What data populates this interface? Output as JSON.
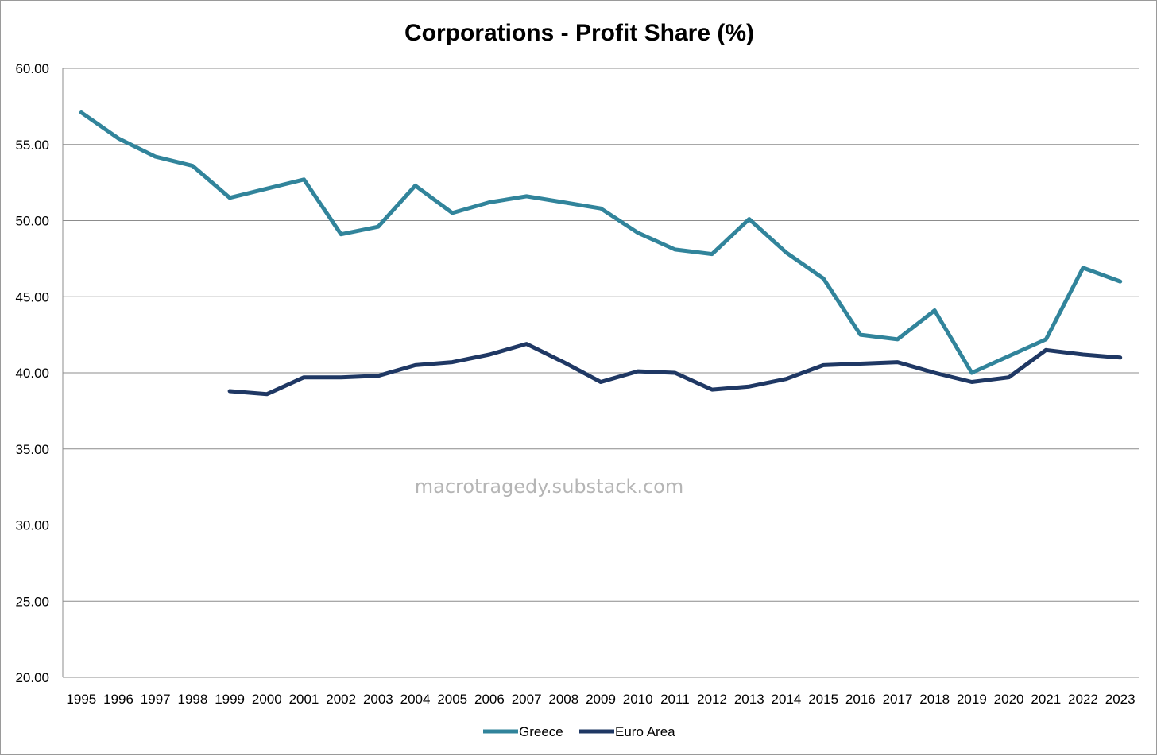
{
  "chart_data": {
    "type": "line",
    "title": "Corporations - Profit Share (%)",
    "xlabel": "",
    "ylabel": "",
    "ylim": [
      20,
      60
    ],
    "yticks": [
      "20.00",
      "25.00",
      "30.00",
      "35.00",
      "40.00",
      "45.00",
      "50.00",
      "55.00",
      "60.00"
    ],
    "grid": true,
    "legend_position": "bottom",
    "categories": [
      "1995",
      "1996",
      "1997",
      "1998",
      "1999",
      "2000",
      "2001",
      "2002",
      "2003",
      "2004",
      "2005",
      "2006",
      "2007",
      "2008",
      "2009",
      "2010",
      "2011",
      "2012",
      "2013",
      "2014",
      "2015",
      "2016",
      "2017",
      "2018",
      "2019",
      "2020",
      "2021",
      "2022",
      "2023"
    ],
    "series": [
      {
        "name": "Greece",
        "color": "#31849B",
        "values": [
          57.1,
          55.4,
          54.2,
          53.6,
          51.5,
          52.1,
          52.7,
          49.1,
          49.6,
          52.3,
          50.5,
          51.2,
          51.6,
          51.2,
          50.8,
          49.2,
          48.1,
          47.8,
          50.1,
          47.9,
          46.2,
          42.5,
          42.2,
          44.1,
          40.0,
          41.1,
          42.2,
          46.9,
          46.0
        ]
      },
      {
        "name": "Euro Area",
        "color": "#1F3864",
        "values": [
          null,
          null,
          null,
          null,
          38.8,
          38.6,
          39.7,
          39.7,
          39.8,
          40.5,
          40.7,
          41.2,
          41.9,
          40.7,
          39.4,
          40.1,
          40.0,
          38.9,
          39.1,
          39.6,
          40.5,
          40.6,
          40.7,
          40.0,
          39.4,
          39.7,
          41.5,
          41.2,
          41.0
        ]
      }
    ],
    "annotations": [
      {
        "text": "macrotragedy.substack.com",
        "placement": "center"
      }
    ]
  }
}
